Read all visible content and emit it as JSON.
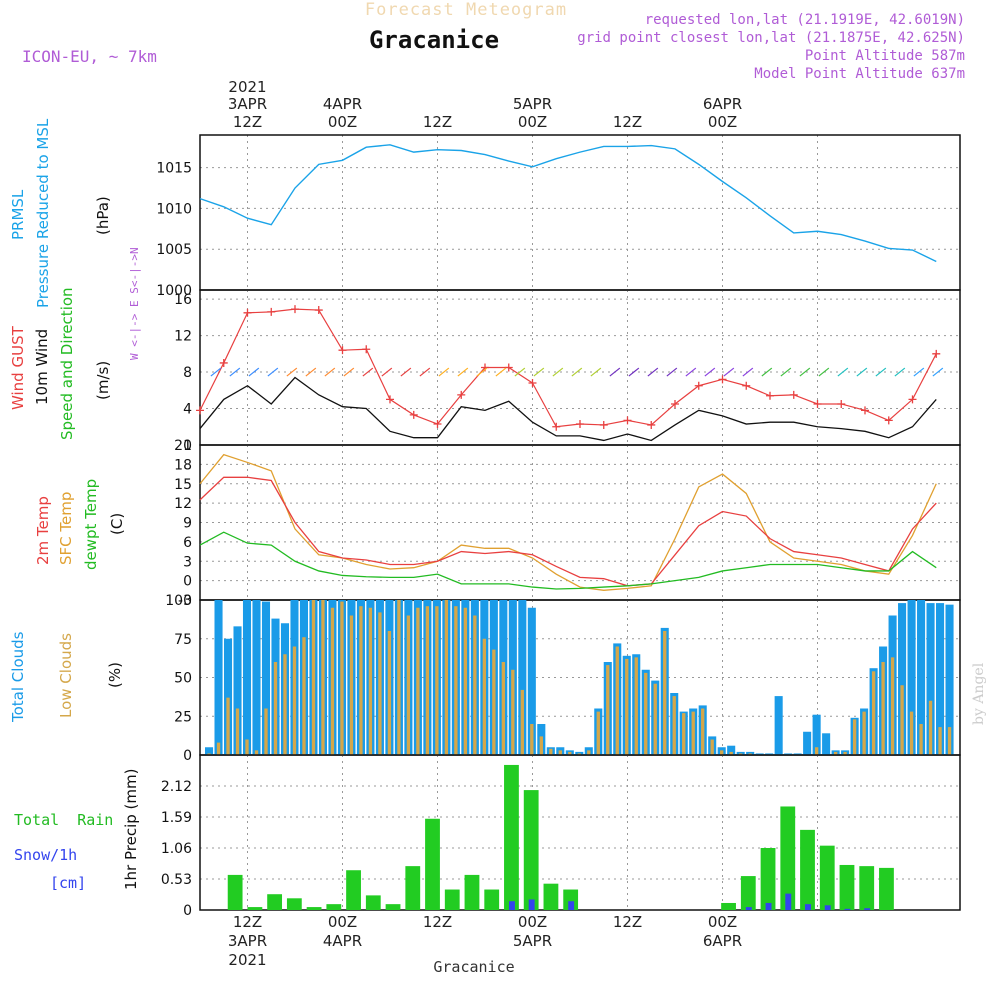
{
  "header": {
    "title": "Forecast Meteogram",
    "location": "Gracanice",
    "model": "ICON-EU, ~ 7km",
    "requested": "requested lon,lat (21.1919E, 42.6019N)",
    "gridpoint": "grid point closest lon,lat (21.1875E, 42.625N)",
    "point_alt": "Point Altitude 587m",
    "model_alt": "Model Point Altitude 637m",
    "watermark": "by Angel",
    "footer": "Gracanice"
  },
  "time_axis": {
    "top_labels": [
      {
        "l1": "2021",
        "l2": "3APR",
        "l3": "12Z"
      },
      {
        "l1": "",
        "l2": "4APR",
        "l3": "00Z"
      },
      {
        "l1": "",
        "l2": "",
        "l3": "12Z"
      },
      {
        "l1": "",
        "l2": "5APR",
        "l3": "00Z"
      },
      {
        "l1": "",
        "l2": "",
        "l3": "12Z"
      },
      {
        "l1": "",
        "l2": "6APR",
        "l3": "00Z"
      }
    ],
    "bottom_labels": [
      {
        "l1": "12Z",
        "l2": "3APR",
        "l3": "2021"
      },
      {
        "l1": "00Z",
        "l2": "4APR",
        "l3": ""
      },
      {
        "l1": "12Z",
        "l2": "",
        "l3": ""
      },
      {
        "l1": "00Z",
        "l2": "5APR",
        "l3": ""
      },
      {
        "l1": "12Z",
        "l2": "",
        "l3": ""
      },
      {
        "l1": "00Z",
        "l2": "6APR",
        "l3": ""
      }
    ]
  },
  "panels_text": {
    "pressure": {
      "label1": "PRMSL",
      "label2": "Pressure Reduced to MSL",
      "unit": "(hPa)"
    },
    "wind": {
      "gust": "Wind GUST",
      "wind10": "10m Wind",
      "speed": "Speed and Direction",
      "unit": "(m/s)",
      "compass": "W <-|-> E   S<-|->N"
    },
    "temp": {
      "t2m": "2m Temp",
      "sfc": "SFC Temp",
      "dew": "dewpt Temp",
      "unit": "(C)"
    },
    "clouds": {
      "total": "Total Clouds",
      "low": "Low Clouds",
      "unit": "(%)"
    },
    "precip": {
      "rain": "Total  Rain",
      "snow": "Snow/1h",
      "cm": "[cm]",
      "unit": "1hr Precip (mm)"
    }
  },
  "colors": {
    "pressure": "#1aa3e8",
    "gust": "#e84040",
    "wind": "#111111",
    "t2m": "#e84040",
    "sfc": "#e0a030",
    "dew": "#22bb22",
    "total_clouds": "#1a9be8",
    "low_clouds": "#d4a74a",
    "rain": "#22cc22",
    "snow": "#3344ee"
  },
  "chart_data": [
    {
      "type": "line",
      "name": "pressure",
      "x_hours": [
        0,
        3,
        6,
        9,
        12,
        15,
        18,
        21,
        24,
        27,
        30,
        33,
        36,
        39,
        42,
        45,
        48,
        51,
        54,
        57,
        60,
        63,
        66,
        69,
        72,
        75,
        78,
        81,
        84,
        87,
        90,
        93
      ],
      "series": [
        {
          "name": "PRMSL",
          "values": [
            1011.2,
            1010.2,
            1008.8,
            1008.0,
            1012.5,
            1015.4,
            1015.9,
            1017.5,
            1017.8,
            1016.9,
            1017.2,
            1017.1,
            1016.6,
            1015.8,
            1015.1,
            1016.1,
            1016.9,
            1017.6,
            1017.6,
            1017.7,
            1017.3,
            1015.4,
            1013.3,
            1011.3,
            1009.1,
            1007.0,
            1007.2,
            1006.8,
            1006.0,
            1005.1,
            1004.9,
            1003.5
          ]
        }
      ],
      "yticks": [
        1000,
        1005,
        1010,
        1015
      ],
      "ylim": [
        1000,
        1019
      ]
    },
    {
      "type": "line",
      "name": "wind",
      "x_hours": [
        0,
        3,
        6,
        9,
        12,
        15,
        18,
        21,
        24,
        27,
        30,
        33,
        36,
        39,
        42,
        45,
        48,
        51,
        54,
        57,
        60,
        63,
        66,
        69,
        72,
        75,
        78,
        81,
        84,
        87,
        90,
        93
      ],
      "series": [
        {
          "name": "Wind GUST",
          "values": [
            3.8,
            9,
            14.5,
            14.6,
            14.9,
            14.8,
            10.4,
            10.5,
            5,
            3.3,
            2.3,
            5.5,
            8.5,
            8.5,
            6.8,
            2,
            2.3,
            2.2,
            2.7,
            2.2,
            4.5,
            6.5,
            7.2,
            6.5,
            5.4,
            5.5,
            4.5,
            4.5,
            3.8,
            2.7,
            5,
            10
          ]
        },
        {
          "name": "10m Wind",
          "values": [
            1.8,
            5,
            6.5,
            4.5,
            7.4,
            5.5,
            4.2,
            4,
            1.5,
            0.8,
            0.8,
            4.2,
            3.8,
            4.8,
            2.5,
            1,
            1,
            0.5,
            1.2,
            0.5,
            2.2,
            3.8,
            3.2,
            2.3,
            2.5,
            2.5,
            2,
            1.8,
            1.5,
            0.8,
            2,
            5
          ]
        }
      ],
      "yticks": [
        0,
        4,
        8,
        12,
        16
      ],
      "ylim": [
        0,
        17
      ]
    },
    {
      "type": "line",
      "name": "temperature",
      "x_hours": [
        0,
        3,
        6,
        9,
        12,
        15,
        18,
        21,
        24,
        27,
        30,
        33,
        36,
        39,
        42,
        45,
        48,
        51,
        54,
        57,
        60,
        63,
        66,
        69,
        72,
        75,
        78,
        81,
        84,
        87,
        90,
        93
      ],
      "series": [
        {
          "name": "2m Temp",
          "values": [
            12.5,
            16,
            16,
            15.5,
            9,
            4.5,
            3.5,
            3.2,
            2.5,
            2.5,
            3,
            4.5,
            4.2,
            4.5,
            4,
            2.2,
            0.5,
            0.3,
            -0.8,
            -0.5,
            4,
            8.5,
            10.7,
            10,
            6.5,
            4.5,
            4,
            3.5,
            2.5,
            1.5,
            8,
            12
          ]
        },
        {
          "name": "SFC Temp",
          "values": [
            15,
            19.5,
            18.3,
            17,
            8,
            4,
            3.5,
            2.5,
            1.8,
            2,
            3,
            5.5,
            5,
            5,
            3.5,
            1,
            -1,
            -1.5,
            -1.2,
            -0.8,
            6.5,
            14.5,
            16.5,
            13.5,
            6,
            3.5,
            3,
            2.5,
            1.5,
            1,
            7,
            15
          ]
        },
        {
          "name": "dewpt Temp",
          "values": [
            5.5,
            7.5,
            5.8,
            5.5,
            3,
            1.5,
            0.8,
            0.6,
            0.5,
            0.5,
            1,
            -0.5,
            -0.5,
            -0.5,
            -1,
            -1.3,
            -1.2,
            -1,
            -0.8,
            -0.5,
            0,
            0.5,
            1.5,
            2,
            2.5,
            2.5,
            2.5,
            2,
            1.5,
            1.5,
            4.5,
            2
          ]
        }
      ],
      "yticks": [
        -3,
        0,
        3,
        6,
        9,
        12,
        15,
        18,
        21
      ],
      "ylim": [
        -3,
        21
      ]
    },
    {
      "type": "bar",
      "name": "clouds",
      "x_hours_start": 0,
      "x_step": 1.5,
      "series": [
        {
          "name": "Total Clouds",
          "values": [
            5,
            100,
            75,
            83,
            100,
            100,
            99,
            88,
            85,
            100,
            100,
            100,
            100,
            100,
            100,
            100,
            100,
            100,
            100,
            100,
            100,
            100,
            100,
            100,
            100,
            100,
            100,
            100,
            100,
            100,
            100,
            100,
            100,
            100,
            95,
            20,
            5,
            5,
            3,
            2,
            5,
            30,
            60,
            72,
            64,
            65,
            55,
            48,
            82,
            40,
            28,
            30,
            32,
            12,
            5,
            6,
            2,
            2,
            1,
            1,
            38,
            1,
            1,
            15,
            26,
            14,
            3,
            3,
            24,
            30,
            56,
            70,
            90,
            98,
            100,
            100,
            98,
            98,
            97
          ]
        },
        {
          "name": "Low Clouds",
          "values": [
            1,
            8,
            37,
            30,
            10,
            3,
            30,
            60,
            65,
            70,
            76,
            100,
            100,
            95,
            99,
            90,
            96,
            95,
            92,
            80,
            100,
            90,
            95,
            96,
            96,
            100,
            96,
            95,
            90,
            75,
            68,
            60,
            55,
            42,
            20,
            12,
            4,
            3,
            2,
            1,
            3,
            28,
            58,
            70,
            62,
            63,
            53,
            46,
            80,
            38,
            27,
            28,
            30,
            10,
            3,
            2,
            1,
            1,
            0,
            0,
            0,
            0,
            0,
            0,
            5,
            0,
            2,
            2,
            23,
            28,
            54,
            60,
            63,
            45,
            28,
            20,
            35,
            18,
            18
          ]
        }
      ],
      "yticks": [
        0,
        25,
        50,
        75,
        100
      ],
      "ylim": [
        0,
        100
      ]
    },
    {
      "type": "bar",
      "name": "precipitation",
      "x_hours_start": 0,
      "x_step": 1,
      "series": [
        {
          "name": "Total Rain",
          "values": [
            0,
            0.6,
            0.05,
            0.27,
            0.2,
            0.05,
            0.1,
            0.68,
            0.25,
            0.1,
            0.75,
            1.56,
            0.35,
            0.6,
            0.35,
            2.48,
            2.05,
            0.45,
            0.35,
            0,
            0,
            0,
            0,
            0,
            0,
            0,
            0.12,
            0.58,
            1.06,
            1.77,
            1.37,
            1.1,
            0.77,
            0.75,
            0.72,
            0,
            0,
            0
          ]
        },
        {
          "name": "Snow/1h",
          "values": [
            0,
            0,
            0,
            0,
            0,
            0,
            0,
            0,
            0,
            0,
            0,
            0,
            0,
            0,
            0,
            0.15,
            0.18,
            0,
            0.15,
            0,
            0,
            0,
            0,
            0,
            0,
            0,
            0,
            0.05,
            0.12,
            0.28,
            0.1,
            0.08,
            0.02,
            0.03,
            0,
            0,
            0,
            0
          ]
        }
      ],
      "yticks": [
        0,
        0.53,
        1.06,
        1.59,
        2.12
      ],
      "ylim": [
        0,
        2.65
      ]
    }
  ]
}
